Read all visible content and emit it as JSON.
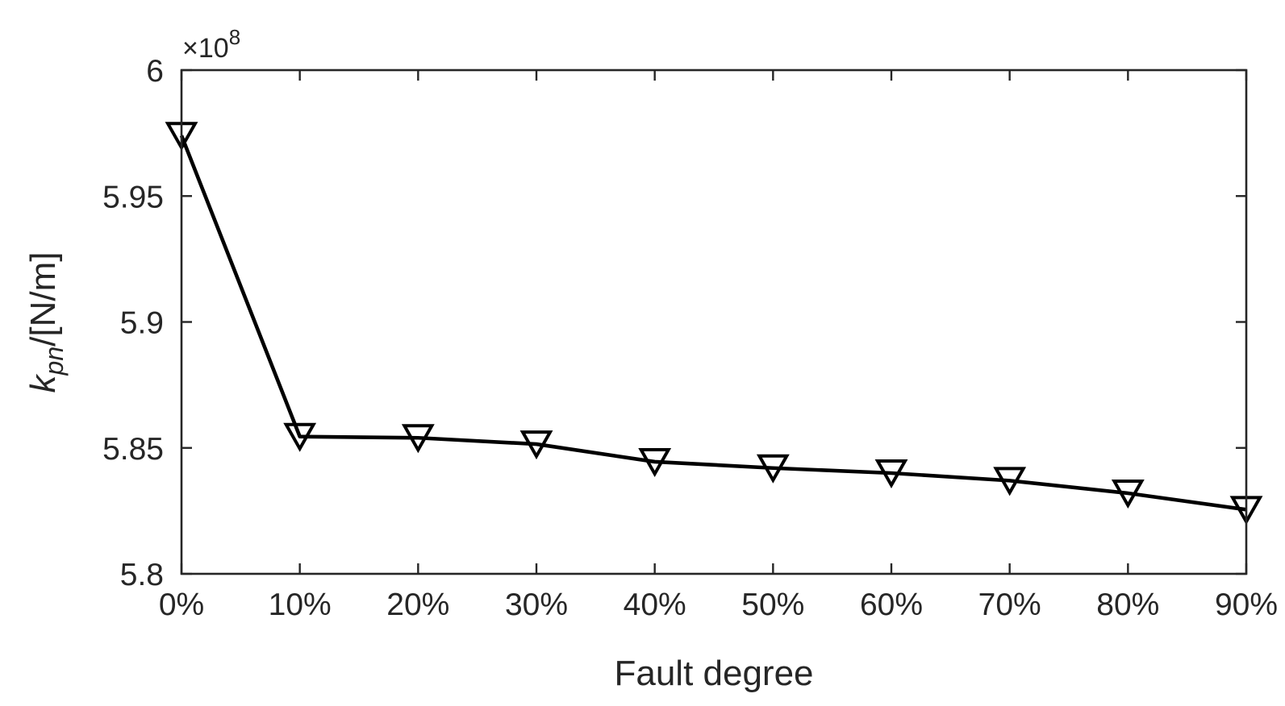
{
  "chart_data": {
    "type": "line",
    "title": "",
    "xlabel": "Fault degree",
    "ylabel": {
      "base": "k",
      "subscript": "pn",
      "unit": "/[N/m]"
    },
    "y_exponent": {
      "prefix": "×10",
      "power": "8"
    },
    "categories": [
      "0%",
      "10%",
      "20%",
      "30%",
      "40%",
      "50%",
      "60%",
      "70%",
      "80%",
      "90%"
    ],
    "ylim": [
      5.8,
      6.0
    ],
    "yticks": [
      5.8,
      5.85,
      5.9,
      5.95,
      6.0
    ],
    "ytick_labels": [
      "5.8",
      "5.85",
      "5.9",
      "5.95",
      "6"
    ],
    "series": [
      {
        "values": [
          5.974,
          5.8545,
          5.854,
          5.8515,
          5.8445,
          5.842,
          5.84,
          5.837,
          5.832,
          5.8255
        ],
        "marker": "downward-triangle",
        "color": "#000000"
      }
    ],
    "grid": false,
    "legend": "none"
  }
}
